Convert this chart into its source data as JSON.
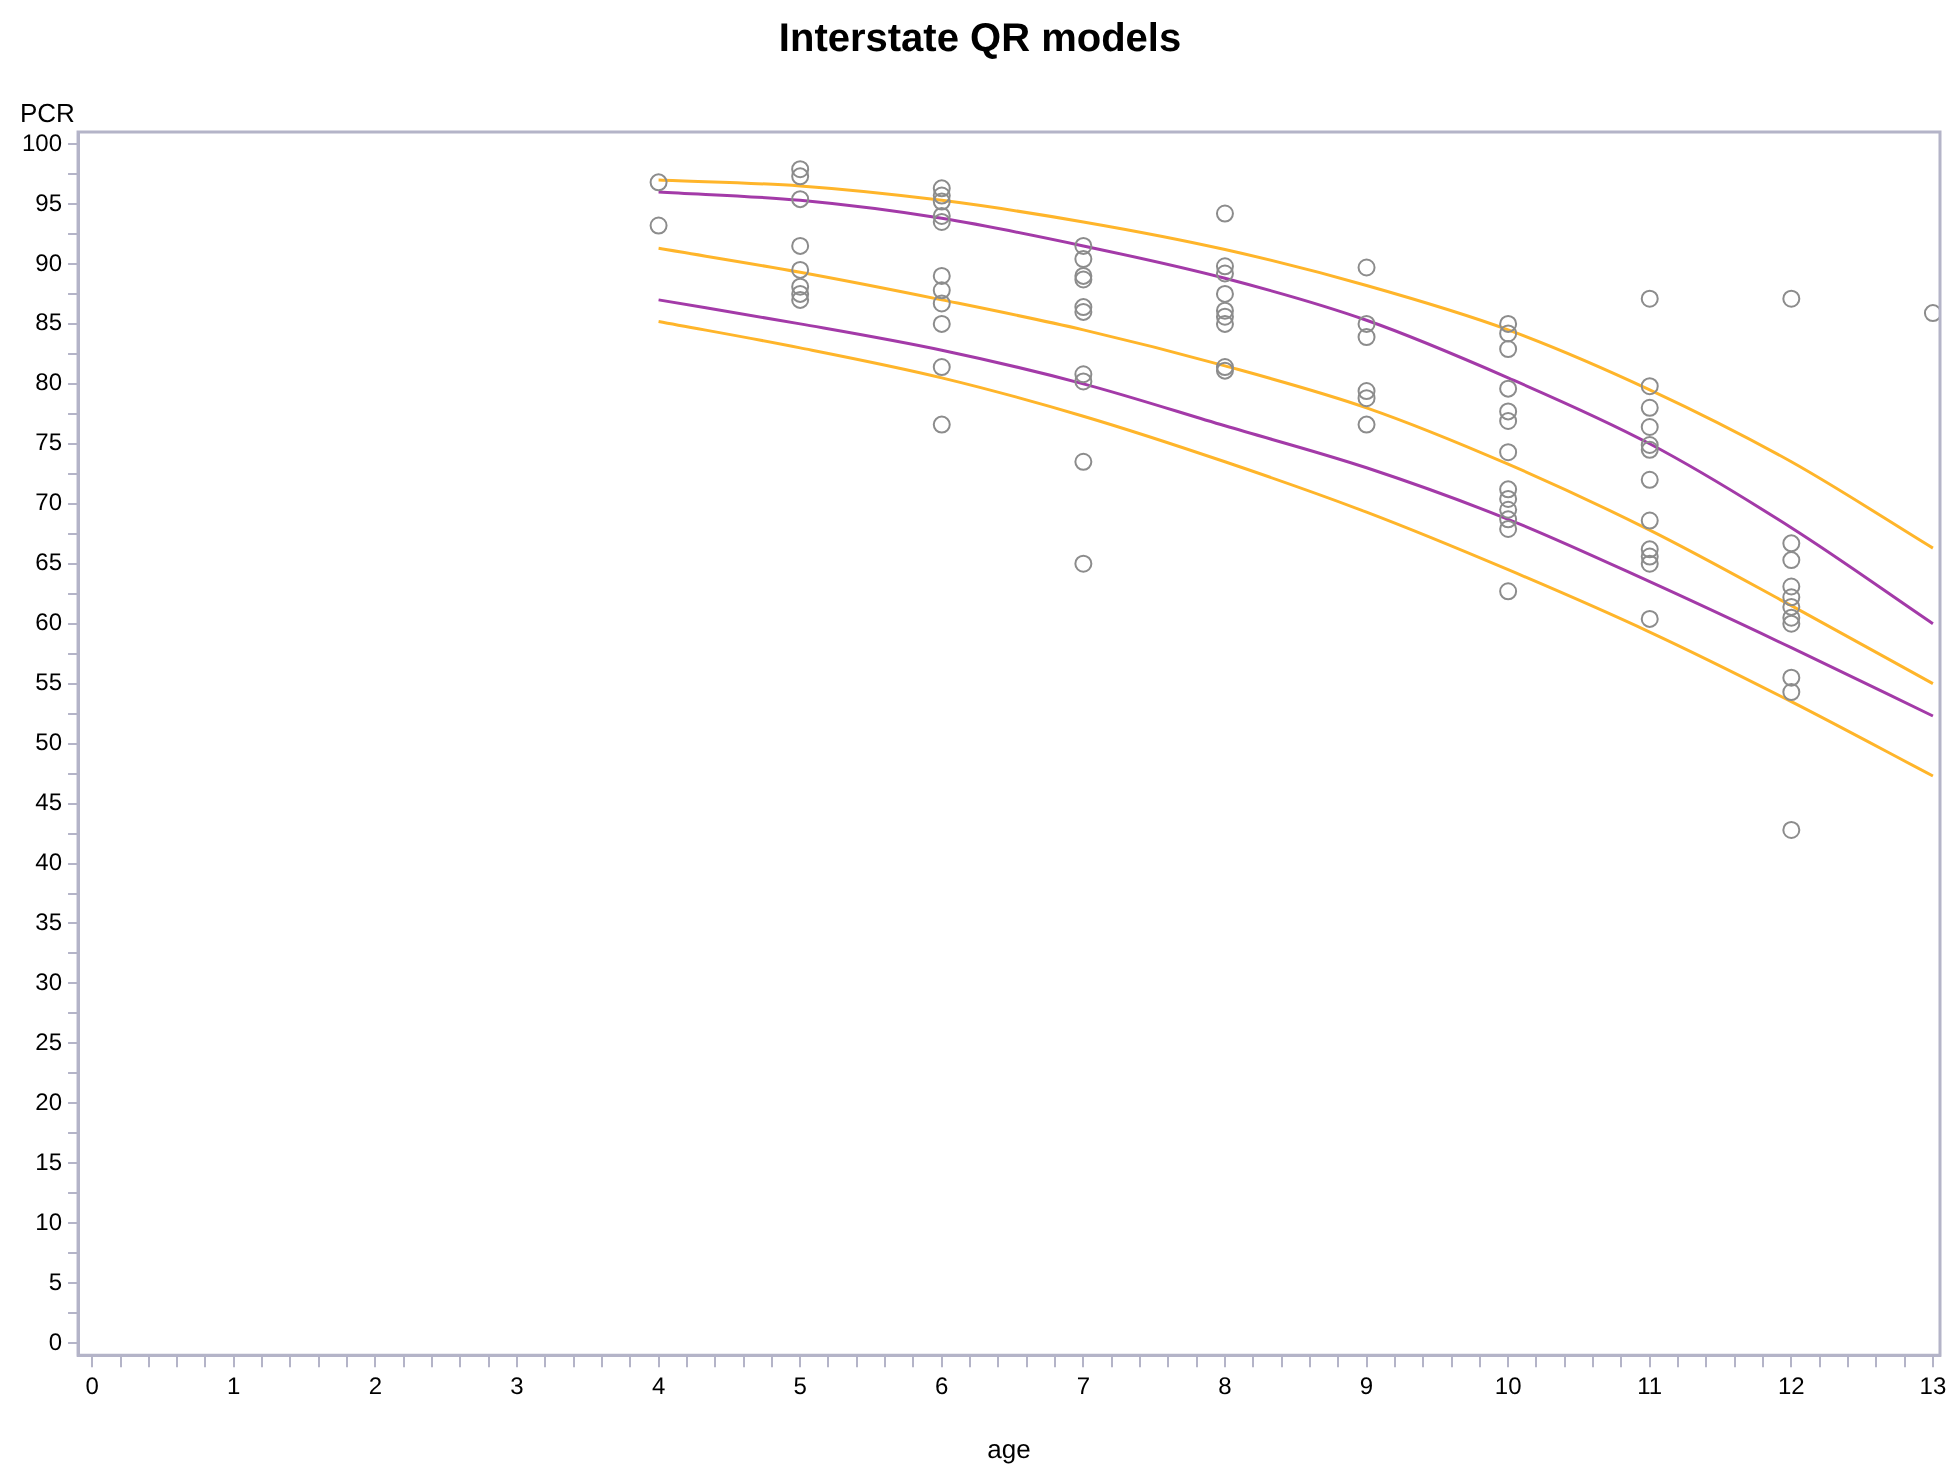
{
  "chart_data": {
    "type": "scatter",
    "title": "Interstate QR models",
    "xlabel": "age",
    "ylabel": "PCR",
    "line_style": "solid",
    "xlim": [
      -0.1,
      13.05
    ],
    "ylim": [
      -1,
      101
    ],
    "xticks": [
      0,
      {
        "value": 0.2,
        "label": null
      },
      {
        "value": 0.4,
        "label": null
      },
      {
        "value": 0.6,
        "label": null
      },
      {
        "value": 0.8,
        "label": null
      },
      1,
      {
        "value": 1.2,
        "label": null
      },
      {
        "value": 1.4,
        "label": null
      },
      {
        "value": 1.6,
        "label": null
      },
      {
        "value": 1.8,
        "label": null
      },
      2,
      {
        "value": 2.2,
        "label": null
      },
      {
        "value": 2.4,
        "label": null
      },
      {
        "value": 2.6,
        "label": null
      },
      {
        "value": 2.8,
        "label": null
      },
      3,
      {
        "value": 3.2,
        "label": null
      },
      {
        "value": 3.4,
        "label": null
      },
      {
        "value": 3.6,
        "label": null
      },
      {
        "value": 3.8,
        "label": null
      },
      4,
      {
        "value": 4.2,
        "label": null
      },
      {
        "value": 4.4,
        "label": null
      },
      {
        "value": 4.6,
        "label": null
      },
      {
        "value": 4.8,
        "label": null
      },
      5,
      {
        "value": 5.2,
        "label": null
      },
      {
        "value": 5.4,
        "label": null
      },
      {
        "value": 5.6,
        "label": null
      },
      {
        "value": 5.8,
        "label": null
      },
      6,
      {
        "value": 6.2,
        "label": null
      },
      {
        "value": 6.4,
        "label": null
      },
      {
        "value": 6.6,
        "label": null
      },
      {
        "value": 6.8,
        "label": null
      },
      7,
      {
        "value": 7.2,
        "label": null
      },
      {
        "value": 7.4,
        "label": null
      },
      {
        "value": 7.6,
        "label": null
      },
      {
        "value": 7.8,
        "label": null
      },
      8,
      {
        "value": 8.2,
        "label": null
      },
      {
        "value": 8.4,
        "label": null
      },
      {
        "value": 8.6,
        "label": null
      },
      {
        "value": 8.8,
        "label": null
      },
      9,
      {
        "value": 9.2,
        "label": null
      },
      {
        "value": 9.4,
        "label": null
      },
      {
        "value": 9.6,
        "label": null
      },
      {
        "value": 9.8,
        "label": null
      },
      10,
      {
        "value": 10.2,
        "label": null
      },
      {
        "value": 10.4,
        "label": null
      },
      {
        "value": 10.6,
        "label": null
      },
      {
        "value": 10.8,
        "label": null
      },
      11,
      {
        "value": 11.2,
        "label": null
      },
      {
        "value": 11.4,
        "label": null
      },
      {
        "value": 11.6,
        "label": null
      },
      {
        "value": 11.8,
        "label": null
      },
      12,
      {
        "value": 12.2,
        "label": null
      },
      {
        "value": 12.4,
        "label": null
      },
      {
        "value": 12.6,
        "label": null
      },
      {
        "value": 12.8,
        "label": null
      },
      13
    ],
    "yticks": [
      0,
      {
        "value": 2.5,
        "label": null
      },
      5,
      {
        "value": 7.5,
        "label": null
      },
      10,
      {
        "value": 12.5,
        "label": null
      },
      15,
      {
        "value": 17.5,
        "label": null
      },
      20,
      {
        "value": 22.5,
        "label": null
      },
      25,
      {
        "value": 27.5,
        "label": null
      },
      30,
      {
        "value": 32.5,
        "label": null
      },
      35,
      {
        "value": 37.5,
        "label": null
      },
      40,
      {
        "value": 42.5,
        "label": null
      },
      45,
      {
        "value": 47.5,
        "label": null
      },
      50,
      {
        "value": 52.5,
        "label": null
      },
      55,
      {
        "value": 57.5,
        "label": null
      },
      60,
      {
        "value": 62.5,
        "label": null
      },
      65,
      {
        "value": 67.5,
        "label": null
      },
      70,
      {
        "value": 72.5,
        "label": null
      },
      75,
      {
        "value": 77.5,
        "label": null
      },
      80,
      {
        "value": 82.5,
        "label": null
      },
      85,
      {
        "value": 87.5,
        "label": null
      },
      90,
      {
        "value": 92.5,
        "label": null
      },
      95,
      {
        "value": 97.5,
        "label": null
      },
      100
    ],
    "series": [
      {
        "marker": "circle",
        "color": "#8c8c8c",
        "x": [
          4,
          4,
          5,
          5,
          5,
          5,
          5,
          5,
          5,
          5,
          6,
          6,
          6,
          6,
          6,
          6,
          6,
          6,
          6,
          6,
          6,
          7,
          7,
          7,
          7,
          7,
          7,
          7,
          7,
          7,
          7,
          8,
          8,
          8,
          8,
          8,
          8,
          8,
          8,
          8,
          9,
          9,
          9,
          9,
          9,
          9,
          10,
          10,
          10,
          10,
          10,
          10,
          10,
          10,
          10,
          10,
          10,
          10,
          10,
          11,
          11,
          11,
          11,
          11,
          11,
          11,
          11,
          11,
          11,
          11,
          11,
          12,
          12,
          12,
          12,
          12,
          12,
          12,
          12,
          12,
          12,
          12,
          13
        ],
        "values": [
          96.8,
          93.2,
          97.9,
          97.3,
          95.4,
          91.5,
          89.5,
          88.1,
          87.5,
          87.0,
          96.3,
          95.7,
          95.2,
          94.0,
          93.5,
          89.0,
          87.8,
          86.7,
          85.0,
          81.4,
          76.6,
          91.5,
          90.4,
          89.0,
          88.7,
          86.4,
          86.0,
          80.8,
          80.2,
          73.5,
          65.0,
          94.2,
          89.8,
          89.2,
          87.5,
          86.1,
          85.6,
          85.0,
          81.4,
          81.1,
          89.7,
          85.0,
          83.9,
          79.4,
          78.8,
          76.6,
          85.0,
          84.2,
          82.9,
          79.6,
          77.7,
          76.9,
          74.3,
          71.2,
          70.4,
          69.5,
          68.7,
          67.9,
          62.7,
          87.1,
          79.8,
          78.0,
          76.4,
          74.9,
          74.5,
          72.0,
          68.6,
          66.2,
          65.6,
          65.0,
          60.4,
          87.1,
          66.7,
          65.3,
          63.1,
          62.2,
          61.4,
          60.5,
          60.0,
          55.5,
          54.3,
          42.8,
          85.9
        ]
      },
      {
        "type": "line",
        "color": "#ffb52a",
        "x": [
          4,
          5,
          6,
          7,
          8,
          9,
          10,
          11,
          12,
          13
        ],
        "values": [
          97,
          96.5,
          95.3,
          93.5,
          91.2,
          88.2,
          84.5,
          79.5,
          73.5,
          66.3
        ]
      },
      {
        "type": "line",
        "color": "#a33aa8",
        "x": [
          4,
          5,
          6,
          7,
          8,
          9,
          10,
          11,
          12,
          13
        ],
        "values": [
          96,
          95.3,
          93.8,
          91.5,
          88.8,
          85.3,
          80.5,
          75,
          68,
          60
        ]
      },
      {
        "type": "line",
        "color": "#ffb52a",
        "x": [
          4,
          5,
          6,
          7,
          8,
          9,
          10,
          11,
          12,
          13
        ],
        "values": [
          91.3,
          89.3,
          87,
          84.5,
          81.5,
          78,
          73.3,
          67.8,
          61.5,
          55
        ]
      },
      {
        "type": "line",
        "color": "#a33aa8",
        "x": [
          4,
          5,
          6,
          7,
          8,
          9,
          10,
          11,
          12,
          13
        ],
        "values": [
          87,
          85,
          82.8,
          80,
          76.5,
          73,
          68.7,
          63.5,
          58,
          52.3
        ]
      },
      {
        "type": "line",
        "color": "#ffb52a",
        "x": [
          4,
          5,
          6,
          7,
          8,
          9,
          10,
          11,
          12,
          13
        ],
        "values": [
          85.2,
          83,
          80.5,
          77.3,
          73.5,
          69.3,
          64.5,
          59.3,
          53.5,
          47.3
        ]
      }
    ]
  }
}
